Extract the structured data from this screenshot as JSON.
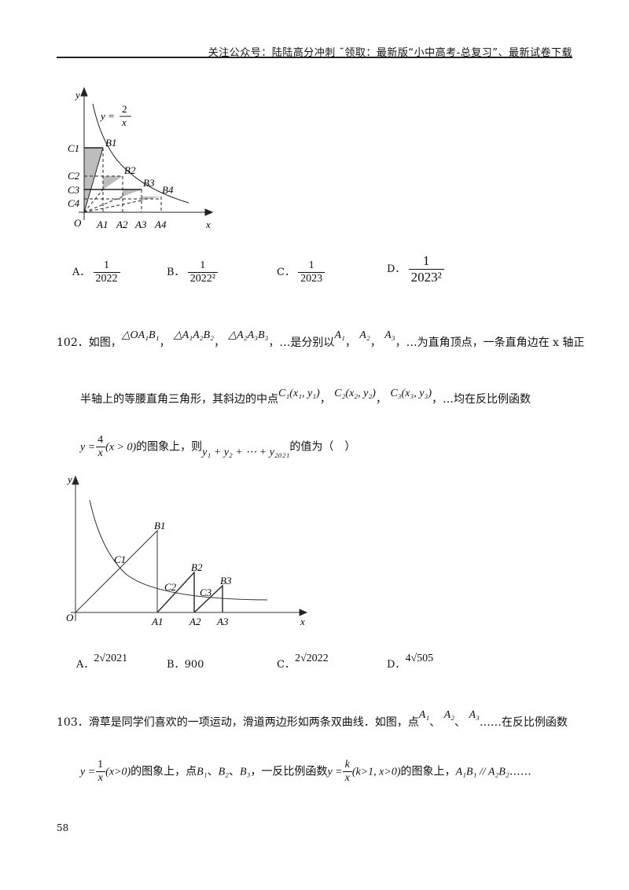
{
  "header": {
    "text": "关注公众号：陆陆高分冲刺 ˜领取：最新版“小中高考-总复习”、最新试卷下载"
  },
  "figure1": {
    "curve_label_y": "y =",
    "curve_num": "2",
    "curve_den": "x",
    "axis_x": "x",
    "axis_y": "y",
    "origin": "O",
    "A": [
      "A1",
      "A2",
      "A3",
      "A4"
    ],
    "B": [
      "B1",
      "B2",
      "B3",
      "B4"
    ],
    "C": [
      "C1",
      "C2",
      "C3",
      "C4"
    ]
  },
  "q101_options": [
    {
      "letter": "A．",
      "num": "1",
      "den": "2022"
    },
    {
      "letter": "B．",
      "num": "1",
      "den": "2022²"
    },
    {
      "letter": "C．",
      "num": "1",
      "den": "2023"
    },
    {
      "letter": "D．",
      "num": "1",
      "den": "2023²"
    }
  ],
  "q102": {
    "number": "102．如图，",
    "tri1": "△OA₁B₁",
    "tri2": "△A₁A₂B₂",
    "tri3": "△A₂A₃B₃",
    "t1": "，…是分别以",
    "a1": "A₁",
    "a2": "A₂",
    "a3": "A₃",
    "t2": "，…为直角顶点，一条直角边在 x 轴正",
    "t3": "半轴上的等腰直角三角形，其斜边的中点",
    "c1": "C₁(x₁, y₁)",
    "c2": "C₂(x₂, y₂)",
    "c3": "C₃(x₃, y₃)",
    "t4": "，…均在反比例函数",
    "func_y": "y =",
    "func_num": "4",
    "func_den": "x",
    "func_cond": "(x > 0)",
    "t5": "的图象上，则",
    "sum": "y₁ + y₂ + ⋯ + y₂₀₂₁",
    "t6": "的值为（　）",
    "sep": "，"
  },
  "figure2": {
    "axis_x": "x",
    "axis_y": "y",
    "origin": "O",
    "A": [
      "A1",
      "A2",
      "A3"
    ],
    "B": [
      "B1",
      "B2",
      "B3"
    ],
    "C": [
      "C1",
      "C2",
      "C3"
    ]
  },
  "q102_options": [
    {
      "letter": "A．",
      "value": "2√2021"
    },
    {
      "letter": "B．",
      "value": "900"
    },
    {
      "letter": "C．",
      "value": "2√2022"
    },
    {
      "letter": "D．",
      "value": "4√505"
    }
  ],
  "q103": {
    "line1": "103．滑草是同学们喜欢的一项运动，滑道两边形如两条双曲线．如图，点",
    "a1": "A₁",
    "a2": "A₂",
    "a3": "A₃",
    "dun": "、",
    "line1_end": "……在反比例函数",
    "f1_y": "y =",
    "f1_num": "1",
    "f1_den": "x",
    "f1_cond": "(x>0)",
    "t2": "的图象上，点",
    "b1": "B₁",
    "b2": "B₂",
    "b3": "B₃",
    "t3": "，一反比例函数",
    "f2_y": "y =",
    "f2_num": "k",
    "f2_den": "x",
    "f2_cond": "(k>1, x>0)",
    "t4": "的图象上，",
    "parallel": "A₁B₁ // A₂B₂",
    "ellipsis": "……"
  },
  "page_number": "58"
}
